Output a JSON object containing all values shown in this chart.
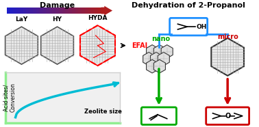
{
  "title_right": "Dehydration of 2-Propanol",
  "damage_label": "Damage",
  "labels_top": [
    "LaY",
    "HY",
    "HYDA"
  ],
  "efal_label": "EFAl",
  "nano_label": "nano",
  "micro_label": "micro",
  "xlabel": "Zeolite size",
  "ylabel": "Acid sites/\nConversion",
  "bg_color": "#ffffff",
  "arrow_damage_color_left": "#b0c4de",
  "arrow_damage_color_right": "#cc0000",
  "curve_color": "#00bcd4",
  "nano_color": "#00aa00",
  "micro_color": "#cc0000",
  "propanol_color": "#1e90ff",
  "border_color_green": "#00aa00",
  "border_color_red": "#cc0000",
  "hex_fill": "#d3d3d3",
  "hex_edge": "#555555",
  "plot_border_color": "#90ee90",
  "graph_bg": "#f5f5f5"
}
